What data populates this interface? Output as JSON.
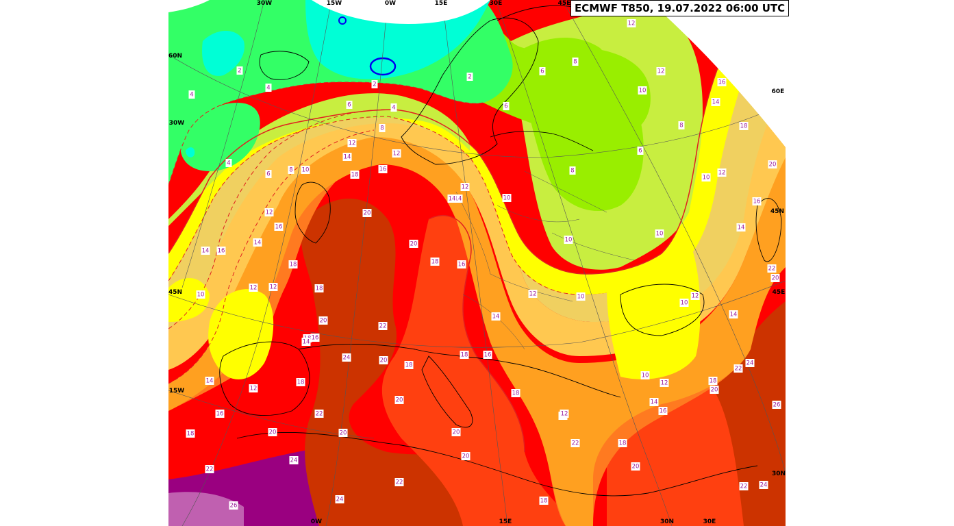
{
  "title": "ECMWF T850, 19.07.2022 06:00 UTC",
  "colors": {
    "band_2": "#00ffd6",
    "band_4": "#33ff66",
    "band_6": "#99ee00",
    "band_8": "#c8ee40",
    "band_10": "#ffff00",
    "band_12": "#f0d060",
    "band_14": "#ffc850",
    "band_16": "#ffa020",
    "band_18": "#ff7a20",
    "band_20": "#ff4010",
    "band_22": "#ff0000",
    "band_24": "#cc3300",
    "band_26": "#9a0080",
    "band_28": "#c060b0",
    "contour_line": "#e02020",
    "label_text": "#9b1c9b",
    "cold_contour": "#0000ee"
  },
  "grid_labels": [
    {
      "id": "30w-top",
      "text": "30W"
    },
    {
      "id": "15w-top",
      "text": "15W"
    },
    {
      "id": "0w-top",
      "text": "0W"
    },
    {
      "id": "15e-top",
      "text": "15E"
    },
    {
      "id": "30e-top",
      "text": "30E"
    },
    {
      "id": "45e-top",
      "text": "45E"
    },
    {
      "id": "60n",
      "text": "60N"
    },
    {
      "id": "30w-left",
      "text": "30W"
    },
    {
      "id": "45n-left",
      "text": "45N"
    },
    {
      "id": "15w-left",
      "text": "15W"
    },
    {
      "id": "0w-bottom",
      "text": "0W"
    },
    {
      "id": "15e-bottom",
      "text": "15E"
    },
    {
      "id": "30n-bottom",
      "text": "30N"
    },
    {
      "id": "30e-bottom",
      "text": "30E"
    },
    {
      "id": "30n-right",
      "text": "30N"
    },
    {
      "id": "45e-right",
      "text": "45E"
    },
    {
      "id": "45n-right",
      "text": "45N"
    },
    {
      "id": "60e-right",
      "text": "60E"
    }
  ],
  "contour_labels": [
    {
      "id": "c1",
      "text": "2"
    },
    {
      "id": "c2",
      "text": "4"
    },
    {
      "id": "c3",
      "text": "4"
    },
    {
      "id": "c4",
      "text": "2"
    },
    {
      "id": "c5",
      "text": "2"
    },
    {
      "id": "c6",
      "text": "4"
    },
    {
      "id": "c7",
      "text": "6"
    },
    {
      "id": "c8",
      "text": "8"
    },
    {
      "id": "c9",
      "text": "4"
    },
    {
      "id": "c10",
      "text": "12"
    },
    {
      "id": "c11",
      "text": "12"
    },
    {
      "id": "c12",
      "text": "6"
    },
    {
      "id": "c13",
      "text": "8"
    },
    {
      "id": "c14",
      "text": "10"
    },
    {
      "id": "c15",
      "text": "12"
    },
    {
      "id": "c16",
      "text": "16"
    },
    {
      "id": "c17",
      "text": "14"
    },
    {
      "id": "c18",
      "text": "18"
    },
    {
      "id": "c19",
      "text": "14"
    },
    {
      "id": "c20",
      "text": "18"
    },
    {
      "id": "c21",
      "text": "20"
    },
    {
      "id": "c22",
      "text": "6"
    },
    {
      "id": "c23",
      "text": "6"
    },
    {
      "id": "c24",
      "text": "8"
    },
    {
      "id": "c25",
      "text": "10"
    },
    {
      "id": "c26",
      "text": "12"
    },
    {
      "id": "c27",
      "text": "16"
    },
    {
      "id": "c28",
      "text": "14"
    },
    {
      "id": "c29",
      "text": "18"
    },
    {
      "id": "c30",
      "text": "20"
    },
    {
      "id": "c31",
      "text": "6"
    },
    {
      "id": "c32",
      "text": "8"
    },
    {
      "id": "c33",
      "text": "10"
    },
    {
      "id": "c34",
      "text": "12"
    },
    {
      "id": "c35",
      "text": "16"
    },
    {
      "id": "c36",
      "text": "14"
    },
    {
      "id": "c37",
      "text": "18"
    },
    {
      "id": "c38",
      "text": "20"
    },
    {
      "id": "c39",
      "text": "8"
    },
    {
      "id": "c40",
      "text": "10"
    },
    {
      "id": "c41",
      "text": "12"
    },
    {
      "id": "c42",
      "text": "16"
    },
    {
      "id": "c43",
      "text": "14"
    },
    {
      "id": "c44",
      "text": "16"
    },
    {
      "id": "c45",
      "text": "12"
    },
    {
      "id": "c46",
      "text": "14"
    },
    {
      "id": "c47",
      "text": "16"
    },
    {
      "id": "c48",
      "text": "18"
    },
    {
      "id": "c49",
      "text": "20"
    },
    {
      "id": "c50",
      "text": "22"
    },
    {
      "id": "c51",
      "text": "24"
    },
    {
      "id": "c52",
      "text": "18"
    },
    {
      "id": "c53",
      "text": "22"
    },
    {
      "id": "c54",
      "text": "20"
    },
    {
      "id": "c55",
      "text": "18"
    },
    {
      "id": "c56",
      "text": "20"
    },
    {
      "id": "c57",
      "text": "10"
    },
    {
      "id": "c58",
      "text": "12"
    },
    {
      "id": "c59",
      "text": "14"
    },
    {
      "id": "c60",
      "text": "16"
    },
    {
      "id": "c61",
      "text": "18"
    },
    {
      "id": "c62",
      "text": "20"
    },
    {
      "id": "c63",
      "text": "22"
    },
    {
      "id": "c64",
      "text": "20"
    },
    {
      "id": "c65",
      "text": "22"
    },
    {
      "id": "c66",
      "text": "24"
    },
    {
      "id": "c67",
      "text": "26"
    },
    {
      "id": "c68",
      "text": "24"
    },
    {
      "id": "c69",
      "text": "20"
    },
    {
      "id": "c70",
      "text": "18"
    },
    {
      "id": "c71",
      "text": "10"
    },
    {
      "id": "c72",
      "text": "12"
    },
    {
      "id": "c73",
      "text": "10"
    },
    {
      "id": "c74",
      "text": "12"
    },
    {
      "id": "c75",
      "text": "14"
    },
    {
      "id": "c76",
      "text": "16"
    },
    {
      "id": "c77",
      "text": "10"
    },
    {
      "id": "c78",
      "text": "12"
    },
    {
      "id": "c79",
      "text": "14"
    },
    {
      "id": "c80",
      "text": "16"
    },
    {
      "id": "c81",
      "text": "18"
    },
    {
      "id": "c82",
      "text": "20"
    },
    {
      "id": "c83",
      "text": "22"
    },
    {
      "id": "c84",
      "text": "24"
    },
    {
      "id": "c85",
      "text": "26"
    },
    {
      "id": "c86",
      "text": "18"
    },
    {
      "id": "c87",
      "text": "22"
    },
    {
      "id": "c88",
      "text": "24"
    },
    {
      "id": "c89",
      "text": "18"
    },
    {
      "id": "c90",
      "text": "20"
    },
    {
      "id": "c91",
      "text": "22"
    },
    {
      "id": "c92",
      "text": "14"
    },
    {
      "id": "c93",
      "text": "10"
    },
    {
      "id": "c94",
      "text": "12"
    },
    {
      "id": "c95",
      "text": "12"
    },
    {
      "id": "c96",
      "text": "14"
    },
    {
      "id": "c97",
      "text": "10"
    },
    {
      "id": "c98",
      "text": "20"
    },
    {
      "id": "c99",
      "text": "22"
    },
    {
      "id": "c100",
      "text": "20"
    },
    {
      "id": "c101",
      "text": "18"
    },
    {
      "id": "c102",
      "text": "16"
    },
    {
      "id": "c103",
      "text": "18"
    },
    {
      "id": "c104",
      "text": "14"
    },
    {
      "id": "c105",
      "text": "12"
    },
    {
      "id": "c106",
      "text": "14"
    }
  ]
}
